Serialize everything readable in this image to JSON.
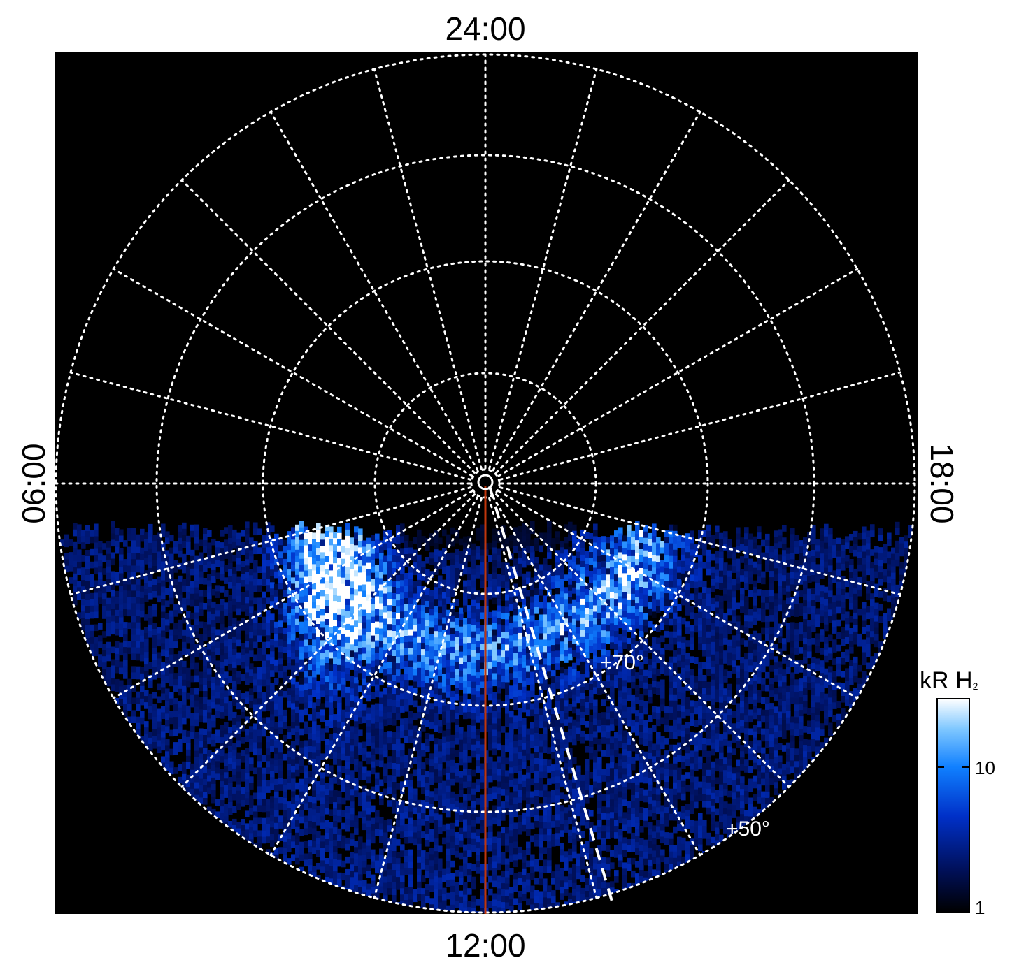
{
  "chart_data": {
    "type": "heatmap",
    "projection": "polar",
    "local_time_labels": {
      "top": "24:00",
      "bottom": "12:00",
      "left": "06:00",
      "right": "18:00"
    },
    "latitude_labels": [
      "+70°",
      "+50°"
    ],
    "grid": true,
    "colorbar": {
      "title": "kR H",
      "title_subscript": "2",
      "scale": "log",
      "range": [
        1,
        30
      ],
      "ticks": [
        "10",
        "1"
      ],
      "colors": [
        "#000000",
        "#00105a",
        "#0030c8",
        "#1080ff",
        "#80c8ff",
        "#ffffff"
      ]
    },
    "colors": {
      "background": "#000000",
      "grid": "#ffffff",
      "meridian_line": "#c0360c",
      "dashed_line": "#ffffff"
    }
  }
}
